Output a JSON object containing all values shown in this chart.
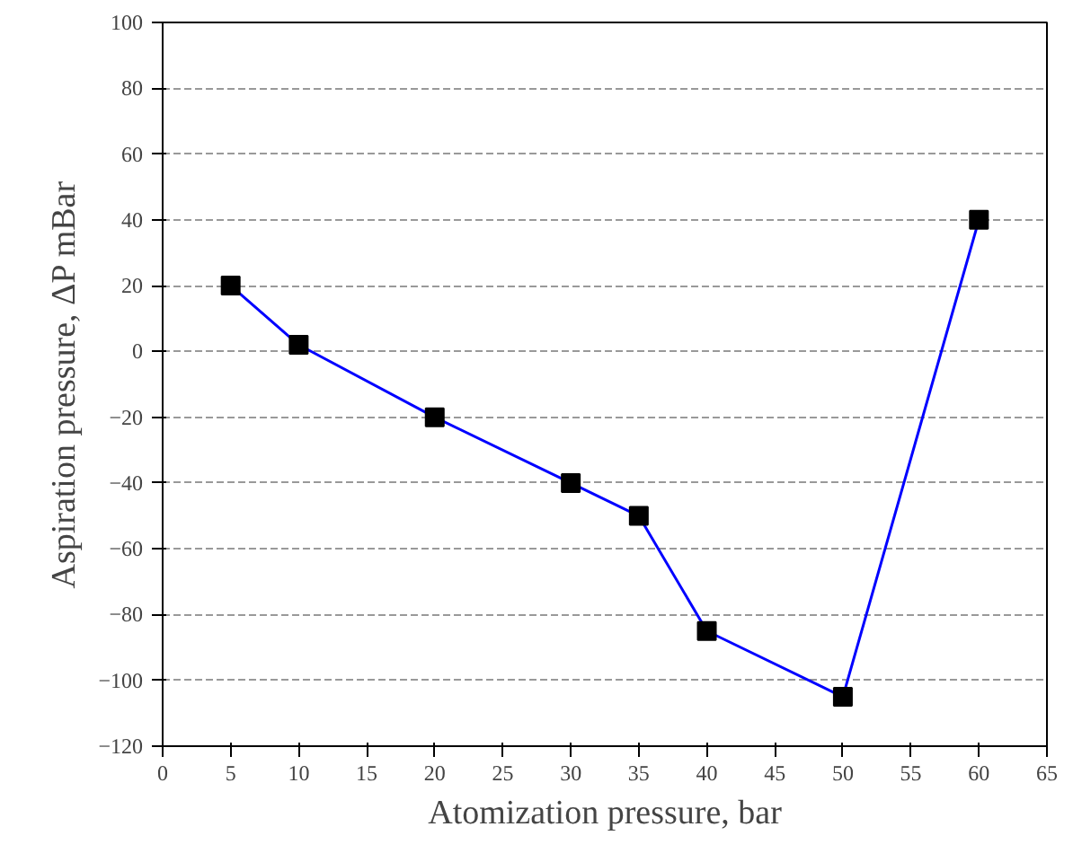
{
  "chart_data": {
    "type": "line",
    "xlabel": "Atomization pressure, bar",
    "ylabel": "Aspiration pressure, ΔP mBar",
    "x": [
      5,
      10,
      20,
      30,
      35,
      40,
      50,
      60
    ],
    "series": [
      {
        "color": "#0000ff",
        "values": [
          20,
          2,
          -20,
          -40,
          -50,
          -85,
          -105,
          40
        ]
      }
    ],
    "xlim": [
      0,
      65
    ],
    "xticks": [
      0,
      5,
      10,
      15,
      20,
      25,
      30,
      35,
      40,
      45,
      50,
      55,
      60,
      65
    ],
    "ylim": [
      -120,
      100
    ],
    "yticks": [
      -120,
      -100,
      -80,
      -60,
      -40,
      -20,
      0,
      20,
      40,
      60,
      80,
      100
    ],
    "grid": "y",
    "marker": "square",
    "line_style": "solid"
  }
}
